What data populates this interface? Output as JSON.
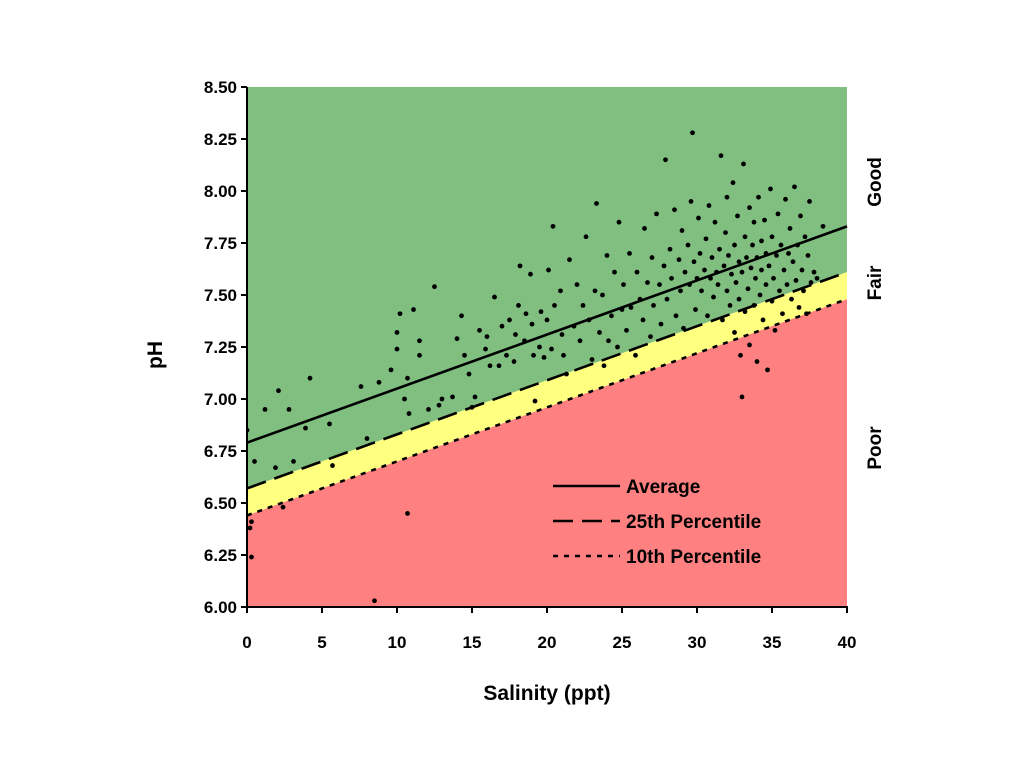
{
  "chart_data": {
    "type": "scatter",
    "xlabel": "Salinity (ppt)",
    "ylabel": "pH",
    "xlim": [
      0,
      40
    ],
    "ylim": [
      6.0,
      8.5
    ],
    "x_ticks": [
      "0",
      "5",
      "10",
      "15",
      "20",
      "25",
      "30",
      "35",
      "40"
    ],
    "y_ticks": [
      "6.00",
      "6.25",
      "6.50",
      "6.75",
      "7.00",
      "7.25",
      "7.50",
      "7.75",
      "8.00",
      "8.25",
      "8.50"
    ],
    "grid": false,
    "legend_position": "bottom-right",
    "zones": [
      {
        "name": "Good",
        "color": "#80bf80"
      },
      {
        "name": "Fair",
        "color": "#ffff80"
      },
      {
        "name": "Poor",
        "color": "#ff8080"
      }
    ],
    "lines": [
      {
        "name": "Average",
        "style": "solid",
        "x": [
          0,
          40
        ],
        "y": [
          6.79,
          7.83
        ]
      },
      {
        "name": "25th Percentile",
        "style": "dashed",
        "x": [
          0,
          40
        ],
        "y": [
          6.57,
          7.61
        ]
      },
      {
        "name": "10th Percentile",
        "style": "dotted",
        "x": [
          0,
          40
        ],
        "y": [
          6.44,
          7.48
        ]
      }
    ],
    "series": [
      {
        "points": [
          [
            0,
            6.85
          ],
          [
            0.3,
            6.41
          ],
          [
            0.2,
            6.38
          ],
          [
            0.3,
            6.24
          ],
          [
            0.5,
            6.7
          ],
          [
            1.2,
            6.95
          ],
          [
            1.9,
            6.67
          ],
          [
            2.1,
            7.04
          ],
          [
            2.4,
            6.48
          ],
          [
            2.8,
            6.95
          ],
          [
            3.1,
            6.7
          ],
          [
            3.9,
            6.86
          ],
          [
            4.2,
            7.1
          ],
          [
            5.5,
            6.88
          ],
          [
            5.7,
            6.68
          ],
          [
            7.6,
            7.06
          ],
          [
            8.0,
            6.81
          ],
          [
            8.5,
            6.03
          ],
          [
            8.8,
            7.08
          ],
          [
            9.6,
            7.14
          ],
          [
            10.0,
            7.24
          ],
          [
            10.0,
            7.32
          ],
          [
            10.2,
            7.41
          ],
          [
            10.5,
            7.0
          ],
          [
            10.7,
            7.1
          ],
          [
            10.7,
            6.45
          ],
          [
            10.8,
            6.93
          ],
          [
            11.1,
            7.43
          ],
          [
            11.5,
            7.28
          ],
          [
            11.5,
            7.21
          ],
          [
            12.1,
            6.95
          ],
          [
            12.5,
            7.54
          ],
          [
            12.8,
            6.97
          ],
          [
            13.0,
            7.0
          ],
          [
            13.7,
            7.01
          ],
          [
            14.0,
            7.29
          ],
          [
            14.3,
            7.4
          ],
          [
            14.5,
            7.21
          ],
          [
            14.8,
            7.12
          ],
          [
            15.0,
            6.96
          ],
          [
            15.2,
            7.01
          ],
          [
            15.5,
            7.33
          ],
          [
            15.9,
            7.24
          ],
          [
            16.0,
            7.3
          ],
          [
            16.2,
            7.16
          ],
          [
            16.5,
            7.49
          ],
          [
            16.8,
            7.16
          ],
          [
            17.0,
            7.35
          ],
          [
            17.3,
            7.21
          ],
          [
            17.5,
            7.38
          ],
          [
            17.8,
            7.18
          ],
          [
            17.9,
            7.31
          ],
          [
            18.1,
            7.45
          ],
          [
            18.2,
            7.64
          ],
          [
            18.5,
            7.28
          ],
          [
            18.6,
            7.41
          ],
          [
            18.9,
            7.6
          ],
          [
            19.0,
            7.36
          ],
          [
            19.1,
            7.21
          ],
          [
            19.2,
            6.99
          ],
          [
            19.5,
            7.25
          ],
          [
            19.6,
            7.42
          ],
          [
            19.8,
            7.2
          ],
          [
            20.0,
            7.38
          ],
          [
            20.1,
            7.62
          ],
          [
            20.3,
            7.24
          ],
          [
            20.4,
            7.83
          ],
          [
            20.5,
            7.45
          ],
          [
            20.9,
            7.52
          ],
          [
            21.0,
            7.31
          ],
          [
            21.1,
            7.21
          ],
          [
            21.3,
            7.12
          ],
          [
            21.5,
            7.67
          ],
          [
            21.8,
            7.35
          ],
          [
            22.0,
            7.55
          ],
          [
            22.2,
            7.28
          ],
          [
            22.4,
            7.45
          ],
          [
            22.6,
            7.78
          ],
          [
            22.8,
            7.38
          ],
          [
            23.0,
            7.19
          ],
          [
            23.2,
            7.52
          ],
          [
            23.3,
            7.94
          ],
          [
            23.5,
            7.32
          ],
          [
            23.7,
            7.5
          ],
          [
            23.8,
            7.16
          ],
          [
            24.0,
            7.69
          ],
          [
            24.1,
            7.28
          ],
          [
            24.3,
            7.4
          ],
          [
            24.5,
            7.61
          ],
          [
            24.7,
            7.25
          ],
          [
            24.8,
            7.85
          ],
          [
            25.0,
            7.43
          ],
          [
            25.1,
            7.55
          ],
          [
            25.3,
            7.33
          ],
          [
            25.5,
            7.7
          ],
          [
            25.6,
            7.44
          ],
          [
            25.9,
            7.21
          ],
          [
            26.0,
            7.61
          ],
          [
            26.2,
            7.48
          ],
          [
            26.4,
            7.38
          ],
          [
            26.5,
            7.82
          ],
          [
            26.7,
            7.56
          ],
          [
            26.9,
            7.3
          ],
          [
            27.0,
            7.68
          ],
          [
            27.1,
            7.45
          ],
          [
            27.3,
            7.89
          ],
          [
            27.5,
            7.55
          ],
          [
            27.6,
            7.36
          ],
          [
            27.8,
            7.64
          ],
          [
            27.9,
            8.15
          ],
          [
            28.0,
            7.48
          ],
          [
            28.2,
            7.72
          ],
          [
            28.3,
            7.58
          ],
          [
            28.5,
            7.91
          ],
          [
            28.6,
            7.4
          ],
          [
            28.8,
            7.67
          ],
          [
            28.9,
            7.52
          ],
          [
            29.0,
            7.81
          ],
          [
            29.1,
            7.34
          ],
          [
            29.2,
            7.61
          ],
          [
            29.4,
            7.74
          ],
          [
            29.5,
            7.55
          ],
          [
            29.6,
            7.95
          ],
          [
            29.7,
            8.28
          ],
          [
            29.8,
            7.66
          ],
          [
            29.9,
            7.43
          ],
          [
            30.0,
            7.58
          ],
          [
            30.1,
            7.87
          ],
          [
            30.2,
            7.7
          ],
          [
            30.3,
            7.52
          ],
          [
            30.5,
            7.62
          ],
          [
            30.6,
            7.77
          ],
          [
            30.7,
            7.4
          ],
          [
            30.8,
            7.93
          ],
          [
            30.9,
            7.58
          ],
          [
            31.0,
            7.68
          ],
          [
            31.1,
            7.49
          ],
          [
            31.2,
            7.85
          ],
          [
            31.3,
            7.61
          ],
          [
            31.4,
            7.55
          ],
          [
            31.5,
            7.72
          ],
          [
            31.6,
            8.17
          ],
          [
            31.7,
            7.38
          ],
          [
            31.8,
            7.64
          ],
          [
            31.9,
            7.8
          ],
          [
            32.0,
            7.52
          ],
          [
            32.0,
            7.97
          ],
          [
            32.1,
            7.69
          ],
          [
            32.2,
            7.45
          ],
          [
            32.3,
            7.6
          ],
          [
            32.4,
            8.04
          ],
          [
            32.5,
            7.74
          ],
          [
            32.5,
            7.32
          ],
          [
            32.6,
            7.56
          ],
          [
            32.7,
            7.88
          ],
          [
            32.8,
            7.48
          ],
          [
            32.8,
            7.66
          ],
          [
            32.9,
            7.21
          ],
          [
            33.0,
            7.01
          ],
          [
            33.0,
            7.61
          ],
          [
            33.1,
            8.13
          ],
          [
            33.2,
            7.78
          ],
          [
            33.2,
            7.42
          ],
          [
            33.3,
            7.68
          ],
          [
            33.4,
            7.53
          ],
          [
            33.5,
            7.92
          ],
          [
            33.5,
            7.26
          ],
          [
            33.6,
            7.63
          ],
          [
            33.7,
            7.74
          ],
          [
            33.8,
            7.45
          ],
          [
            33.8,
            7.85
          ],
          [
            33.9,
            7.58
          ],
          [
            34.0,
            7.18
          ],
          [
            34.0,
            7.68
          ],
          [
            34.1,
            7.97
          ],
          [
            34.2,
            7.5
          ],
          [
            34.3,
            7.62
          ],
          [
            34.3,
            7.76
          ],
          [
            34.4,
            7.38
          ],
          [
            34.5,
            7.86
          ],
          [
            34.6,
            7.55
          ],
          [
            34.6,
            7.7
          ],
          [
            34.7,
            7.14
          ],
          [
            34.8,
            7.64
          ],
          [
            34.9,
            8.01
          ],
          [
            35.0,
            7.47
          ],
          [
            35.0,
            7.78
          ],
          [
            35.1,
            7.58
          ],
          [
            35.2,
            7.33
          ],
          [
            35.3,
            7.69
          ],
          [
            35.4,
            7.89
          ],
          [
            35.5,
            7.52
          ],
          [
            35.6,
            7.74
          ],
          [
            35.7,
            7.41
          ],
          [
            35.8,
            7.62
          ],
          [
            35.9,
            7.96
          ],
          [
            36.0,
            7.55
          ],
          [
            36.1,
            7.7
          ],
          [
            36.2,
            7.82
          ],
          [
            36.3,
            7.48
          ],
          [
            36.4,
            7.66
          ],
          [
            36.5,
            8.02
          ],
          [
            36.6,
            7.57
          ],
          [
            36.7,
            7.74
          ],
          [
            36.8,
            7.44
          ],
          [
            36.9,
            7.88
          ],
          [
            37.0,
            7.62
          ],
          [
            37.1,
            7.52
          ],
          [
            37.2,
            7.78
          ],
          [
            37.3,
            7.41
          ],
          [
            37.4,
            7.69
          ],
          [
            37.5,
            7.95
          ],
          [
            37.6,
            7.56
          ],
          [
            37.8,
            7.61
          ],
          [
            38.0,
            7.58
          ],
          [
            38.4,
            7.83
          ]
        ]
      }
    ]
  }
}
